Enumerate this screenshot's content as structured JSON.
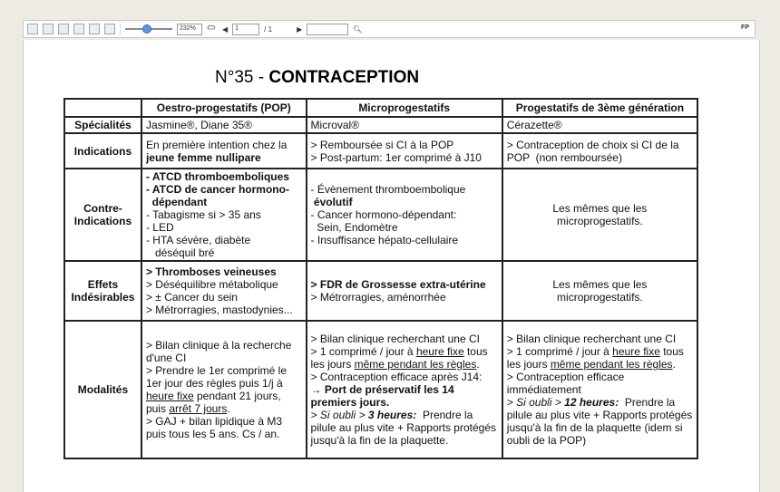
{
  "toolbar": {
    "zoom": "232%",
    "page_current": "1",
    "page_total": "/ 1",
    "search_value": "",
    "corner_label": "FP",
    "zoom_slider_fraction": 0.45
  },
  "title": {
    "prefix": "N°35 - ",
    "main": "CONTRACEPTION"
  },
  "table": {
    "headers": [
      "",
      "Oestro-progestatifs (POP)",
      "Microprogestatifs",
      "Progestatifs de 3ème génération"
    ],
    "rows": [
      {
        "label": "Spécialités",
        "cells": [
          [
            [
              {
                "t": "Jasmine®, Diane 35®"
              }
            ]
          ],
          [
            [
              {
                "t": "Microval®"
              }
            ]
          ],
          [
            [
              {
                "t": "Cérazette®"
              }
            ]
          ]
        ]
      },
      {
        "label": "Indications",
        "cells": [
          [
            [
              {
                "t": "En première intention chez la"
              }
            ],
            [
              {
                "t": "jeune femme nullipare",
                "b": true
              }
            ]
          ],
          [
            [
              {
                "t": "> Remboursée si CI à la POP"
              }
            ],
            [
              {
                "t": "> Post-partum: 1er comprimé à J10"
              }
            ]
          ],
          [
            [
              {
                "t": "> Contraception de choix si CI de la POP  (non remboursée)"
              }
            ]
          ]
        ]
      },
      {
        "label": "Contre-Indications",
        "cells": [
          [
            [
              {
                "t": "- ATCD thromboemboliques",
                "b": true
              }
            ],
            [
              {
                "t": "- ATCD de cancer hormono-",
                "b": true
              }
            ],
            [
              {
                "t": "  dépendant",
                "b": true
              }
            ],
            [
              {
                "t": "- Tabagisme si > 35 ans"
              }
            ],
            [
              {
                "t": "- LED"
              }
            ],
            [
              {
                "t": "- HTA sévère, diabète"
              }
            ],
            [
              {
                "t": "   déséquil bré"
              }
            ]
          ],
          [
            [
              {
                "t": "- Évènement thromboembolique"
              }
            ],
            [
              {
                "t": " évolutif",
                "b": true
              }
            ],
            [
              {
                "t": "- Cancer hormono-dépendant:"
              }
            ],
            [
              {
                "t": "  Sein, Endomètre"
              }
            ],
            [
              {
                "t": "- Insuffisance hépato-cellulaire"
              }
            ]
          ],
          [
            [
              {
                "t": "Les mêmes que les"
              }
            ],
            [
              {
                "t": "microprogestatifs."
              }
            ]
          ]
        ]
      },
      {
        "label": "Effets Indésirables",
        "cells": [
          [
            [
              {
                "t": "> Thromboses veineuses",
                "b": true
              }
            ],
            [
              {
                "t": "> Déséquilibre métabolique"
              }
            ],
            [
              {
                "t": "> ± Cancer du sein"
              }
            ],
            [
              {
                "t": "> Métrorragies, mastodynies..."
              }
            ]
          ],
          [
            [
              {
                "t": "> FDR de Grossesse extra-utérine",
                "b": true
              }
            ],
            [
              {
                "t": "> Métrorragies, aménorrhée"
              }
            ]
          ],
          [
            [
              {
                "t": "Les mêmes que les"
              }
            ],
            [
              {
                "t": "microprogestatifs."
              }
            ]
          ]
        ]
      },
      {
        "label": "Modalités",
        "cells": [
          [
            [
              {
                "t": "> Bilan clinique à la recherche d'une CI"
              }
            ],
            [
              {
                "t": "> Prendre le 1er comprimé le 1er jour des règles puis 1/j à "
              },
              {
                "t": "heure fixe",
                "u": true
              },
              {
                "t": " pendant 21 jours, puis "
              },
              {
                "t": "arrêt 7 jours",
                "u": true
              },
              {
                "t": "."
              }
            ],
            [
              {
                "t": "> GAJ + bilan lipidique à M3 puis tous les 5 ans. Cs / an."
              }
            ]
          ],
          [
            [
              {
                "t": "> Bilan clinique recherchant une CI"
              }
            ],
            [
              {
                "t": "> 1 comprimé / jour à "
              },
              {
                "t": "heure fixe",
                "u": true
              },
              {
                "t": " tous les jours "
              },
              {
                "t": "même pendant les règles",
                "u": true
              },
              {
                "t": "."
              }
            ],
            [
              {
                "t": "> Contraception efficace après J14:"
              }
            ],
            [
              {
                "t": "→ Port de préservatif les 14 premiers jours.",
                "b": true
              }
            ],
            [
              {
                "t": "> Si oubli > ",
                "i": true
              },
              {
                "t": "3 heures:",
                "i": true,
                "b": true
              },
              {
                "t": "  Prendre la pilule au plus vite + Rapports protégés jusqu'à la fin de la plaquette."
              }
            ]
          ],
          [
            [
              {
                "t": "> Bilan clinique recherchant une CI"
              }
            ],
            [
              {
                "t": "> 1 comprimé / jour à "
              },
              {
                "t": "heure fixe",
                "u": true
              },
              {
                "t": " tous les jours "
              },
              {
                "t": "même pendant les règles",
                "u": true
              },
              {
                "t": "."
              }
            ],
            [
              {
                "t": "> Contraception efficace immédiatement"
              }
            ],
            [
              {
                "t": "> Si oubli > ",
                "i": true
              },
              {
                "t": "12 heures:",
                "i": true,
                "b": true
              },
              {
                "t": "  Prendre la pilule au plus vite + Rapports protégés jusqu'à la fin de la plaquette (idem si oubli de la POP)"
              }
            ]
          ]
        ]
      }
    ]
  }
}
